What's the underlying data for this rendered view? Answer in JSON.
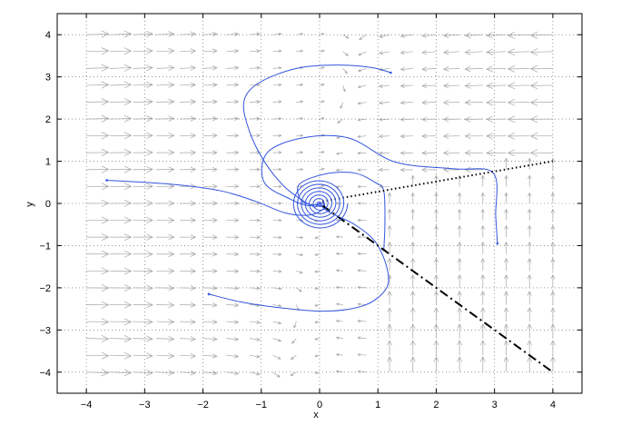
{
  "chart_data": {
    "type": "line",
    "title": "",
    "xlabel": "x",
    "ylabel": "y",
    "xlim": [
      -4.5,
      4.5
    ],
    "ylim": [
      -4.5,
      4.5
    ],
    "xticks": [
      -4,
      -3,
      -2,
      -1,
      0,
      1,
      2,
      3,
      4
    ],
    "yticks": [
      -4,
      -3,
      -2,
      -1,
      0,
      1,
      2,
      3,
      4
    ],
    "xtick_labels": [
      "−4",
      "−3",
      "−2",
      "−1",
      "0",
      "1",
      "2",
      "3",
      "4"
    ],
    "ytick_labels": [
      "−4",
      "−3",
      "−2",
      "−1",
      "0",
      "1",
      "2",
      "3",
      "4"
    ],
    "grid": true,
    "vector_field": {
      "color": "#a6a6a6",
      "x_from": -4,
      "x_to": 4,
      "x_step": 0.4,
      "y_from": -4,
      "y_to": 4,
      "y_step": 0.4,
      "right_region_rule": "x > 1 and y < 0.25*x: arrows point up",
      "left_region_rule": "x < 1: arrows point horizontally toward y-axis region (rightward at left, leftward at right)"
    },
    "series": [
      {
        "color": "#3355dd",
        "style": "solid",
        "points": [
          [
            1.22,
            3.1
          ],
          [
            0.9,
            3.22
          ],
          [
            0.3,
            3.28
          ],
          [
            -0.4,
            3.2
          ],
          [
            -1.05,
            2.85
          ],
          [
            -1.3,
            2.4
          ],
          [
            -1.2,
            1.7
          ],
          [
            -0.95,
            1.0
          ],
          [
            -0.62,
            0.42
          ],
          [
            -0.3,
            0.08
          ],
          [
            -0.08,
            -0.08
          ],
          [
            0.0,
            0.0
          ]
        ]
      },
      {
        "color": "#3355dd",
        "style": "solid",
        "points": [
          [
            -3.65,
            0.55
          ],
          [
            -2.5,
            0.45
          ],
          [
            -1.7,
            0.3
          ],
          [
            -1.1,
            0.05
          ],
          [
            -0.6,
            -0.22
          ],
          [
            -0.2,
            -0.28
          ],
          [
            0.05,
            -0.15
          ],
          [
            0.08,
            0.0
          ],
          [
            0.0,
            0.02
          ]
        ]
      },
      {
        "color": "#3355dd",
        "style": "solid",
        "points": [
          [
            -1.9,
            -2.15
          ],
          [
            -1.3,
            -2.35
          ],
          [
            -0.5,
            -2.5
          ],
          [
            0.2,
            -2.55
          ],
          [
            0.8,
            -2.4
          ],
          [
            1.15,
            -2.0
          ],
          [
            1.15,
            -1.5
          ],
          [
            0.95,
            -0.9
          ],
          [
            0.6,
            -0.5
          ],
          [
            0.3,
            -0.3
          ],
          [
            0.1,
            -0.15
          ],
          [
            0.0,
            0.0
          ]
        ]
      },
      {
        "color": "#3355dd",
        "style": "solid",
        "points": [
          [
            3.05,
            -0.95
          ],
          [
            3.02,
            -0.3
          ],
          [
            2.98,
            0.72
          ],
          [
            2.3,
            0.82
          ],
          [
            1.3,
            0.98
          ],
          [
            0.5,
            1.55
          ],
          [
            -0.3,
            1.55
          ],
          [
            -0.9,
            1.2
          ],
          [
            -0.95,
            0.5
          ],
          [
            -0.5,
            0.1
          ],
          [
            -0.2,
            -0.05
          ],
          [
            0.0,
            0.0
          ]
        ]
      },
      {
        "color": "#3355dd",
        "style": "solid",
        "points": [
          [
            1.1,
            -1.1
          ],
          [
            1.12,
            -0.5
          ],
          [
            1.1,
            0.3
          ],
          [
            0.95,
            0.5
          ],
          [
            0.6,
            0.72
          ],
          [
            0.1,
            0.7
          ],
          [
            -0.35,
            0.45
          ],
          [
            -0.3,
            0.05
          ],
          [
            0.0,
            -0.05
          ],
          [
            0.02,
            0.0
          ]
        ]
      },
      {
        "color": "#000000",
        "style": "dotted",
        "points": [
          [
            0.05,
            0.05
          ],
          [
            4.0,
            1.0
          ]
        ]
      },
      {
        "color": "#000000",
        "style": "dashdot",
        "points": [
          [
            0.05,
            -0.05
          ],
          [
            4.0,
            -4.0
          ]
        ]
      }
    ],
    "spiral": {
      "color": "#3355dd",
      "center": [
        0.0,
        0.0
      ],
      "start_radius": 0.45,
      "turns": 7
    }
  }
}
